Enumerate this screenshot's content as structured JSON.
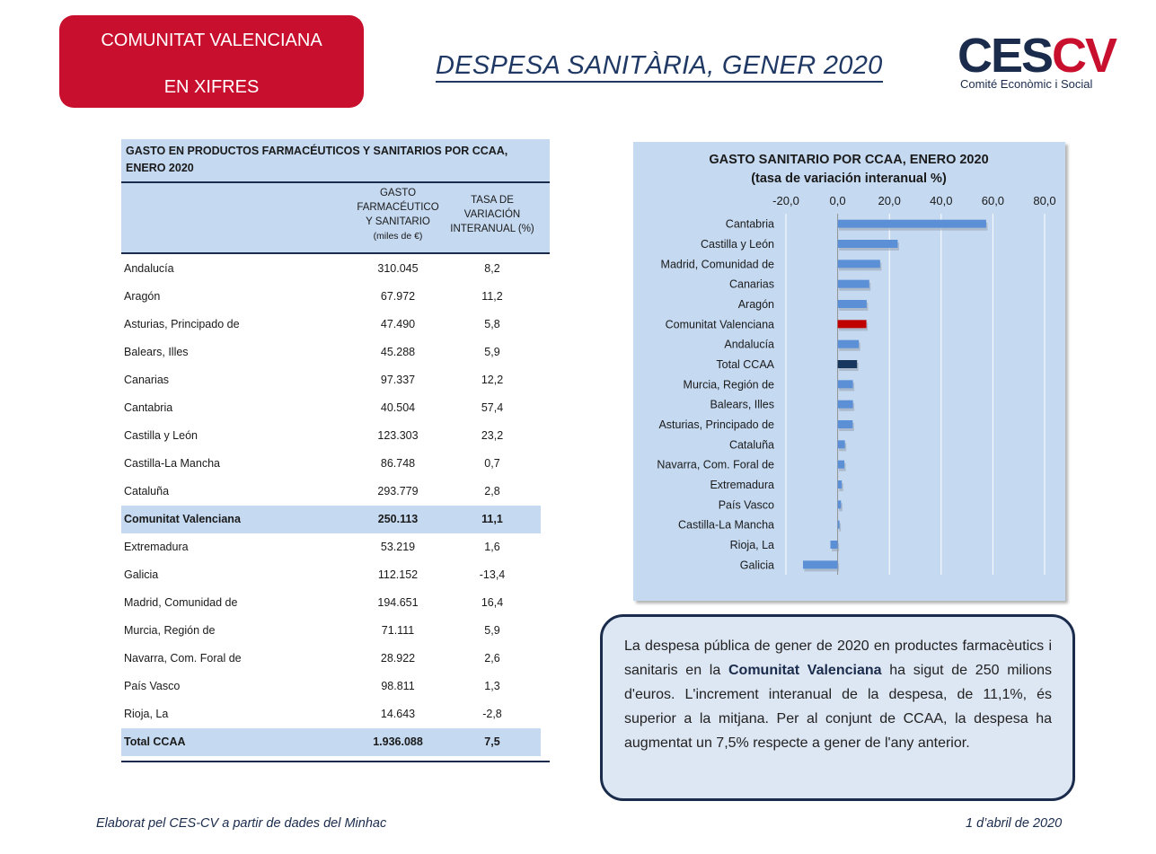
{
  "header": {
    "badge_line1": "COMUNITAT VALENCIANA",
    "badge_line2": "EN XIFRES",
    "title": "DESPESA SANITÀRIA, GENER 2020",
    "logo_text_a": "CES",
    "logo_text_b": "CV",
    "logo_subtitle": "Comité Econòmic i Social",
    "brand_red": "#c8102e",
    "brand_navy": "#1a2b4c"
  },
  "table": {
    "title_line1": "GASTO EN PRODUCTOS FARMACÉUTICOS Y SANITARIOS POR CCAA,",
    "title_line2": "ENERO 2020",
    "col1_l1": "GASTO",
    "col1_l2": "FARMACÉUTICO",
    "col1_l3": "Y SANITARIO",
    "col1_l4": "(miles de €)",
    "col2_l1": "TASA DE",
    "col2_l2": "VARIACIÓN",
    "col2_l3": "INTERANUAL (%)",
    "rows": [
      {
        "name": "Andalucía",
        "gasto": "310.045",
        "tasa": "8,2"
      },
      {
        "name": "Aragón",
        "gasto": "67.972",
        "tasa": "11,2"
      },
      {
        "name": "Asturias, Principado de",
        "gasto": "47.490",
        "tasa": "5,8"
      },
      {
        "name": "Balears, Illes",
        "gasto": "45.288",
        "tasa": "5,9"
      },
      {
        "name": "Canarias",
        "gasto": "97.337",
        "tasa": "12,2"
      },
      {
        "name": "Cantabria",
        "gasto": "40.504",
        "tasa": "57,4"
      },
      {
        "name": "Castilla y León",
        "gasto": "123.303",
        "tasa": "23,2"
      },
      {
        "name": "Castilla-La Mancha",
        "gasto": "86.748",
        "tasa": "0,7"
      },
      {
        "name": "Cataluña",
        "gasto": "293.779",
        "tasa": "2,8"
      },
      {
        "name": "Comunitat Valenciana",
        "gasto": "250.113",
        "tasa": "11,1"
      },
      {
        "name": "Extremadura",
        "gasto": "53.219",
        "tasa": "1,6"
      },
      {
        "name": "Galicia",
        "gasto": "112.152",
        "tasa": "-13,4"
      },
      {
        "name": "Madrid, Comunidad de",
        "gasto": "194.651",
        "tasa": "16,4"
      },
      {
        "name": "Murcia, Región de",
        "gasto": "71.111",
        "tasa": "5,9"
      },
      {
        "name": "Navarra, Com. Foral de",
        "gasto": "28.922",
        "tasa": "2,6"
      },
      {
        "name": "País Vasco",
        "gasto": "98.811",
        "tasa": "1,3"
      },
      {
        "name": "Rioja, La",
        "gasto": "14.643",
        "tasa": "-2,8"
      },
      {
        "name": "Total CCAA",
        "gasto": "1.936.088",
        "tasa": "7,5"
      }
    ],
    "highlight_rows": [
      "Comunitat Valenciana",
      "Total CCAA"
    ]
  },
  "chart_data": {
    "type": "bar",
    "orientation": "horizontal",
    "title": "GASTO SANITARIO POR CCAA, ENERO 2020",
    "subtitle": "(tasa de variación interanual %)",
    "categories": [
      "Cantabria",
      "Castilla y León",
      "Madrid, Comunidad de",
      "Canarias",
      "Aragón",
      "Comunitat Valenciana",
      "Andalucía",
      "Total CCAA",
      "Murcia, Región de",
      "Balears, Illes",
      "Asturias, Principado de",
      "Cataluña",
      "Navarra, Com. Foral de",
      "Extremadura",
      "País Vasco",
      "Castilla-La Mancha",
      "Rioja, La",
      "Galicia"
    ],
    "values": [
      57.4,
      23.2,
      16.4,
      12.2,
      11.2,
      11.1,
      8.2,
      7.5,
      5.9,
      5.9,
      5.8,
      2.8,
      2.6,
      1.6,
      1.3,
      0.7,
      -2.8,
      -13.4
    ],
    "xlim": [
      -20,
      80
    ],
    "ticks": [
      "-20,0",
      "0,0",
      "20,0",
      "40,0",
      "60,0",
      "80,0"
    ],
    "tick_values": [
      -20,
      0,
      20,
      40,
      60,
      80
    ],
    "axis_position": "top",
    "grid": true,
    "colors": {
      "default": "#5b8fd6",
      "Comunitat Valenciana": "#c00000",
      "Total CCAA": "#17375e"
    }
  },
  "note": {
    "part1": "La despesa pública de gener de 2020 en productes farmacèutics i sanitaris en la ",
    "bold": "Comunitat Valenciana",
    "part2": " ha sigut de 250 milions d'euros. L'increment interanual de la despesa, de 11,1%, és superior a la mitjana. Per al conjunt de CCAA, la despesa ha augmentat un 7,5% respecte a gener de l'any anterior."
  },
  "footer": {
    "left": "Elaborat pel CES-CV a partir de dades del Minhac",
    "right": "1 d’abril de 2020"
  }
}
